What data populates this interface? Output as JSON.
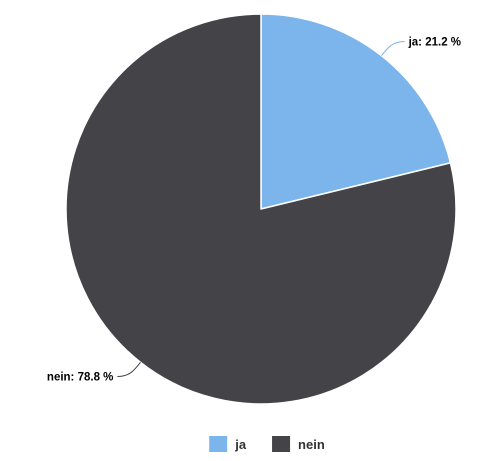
{
  "chart_data": {
    "type": "pie",
    "title": "",
    "slices": [
      {
        "name": "ja",
        "value": 21.2,
        "label": "ja: 21.2 %",
        "color": "#7cb5ec"
      },
      {
        "name": "nein",
        "value": 78.8,
        "label": "nein: 78.8 %",
        "color": "#434348"
      }
    ],
    "legend": {
      "position": "bottom-center",
      "items": [
        "ja",
        "nein"
      ]
    },
    "start_angle": "12 o'clock, clockwise"
  }
}
